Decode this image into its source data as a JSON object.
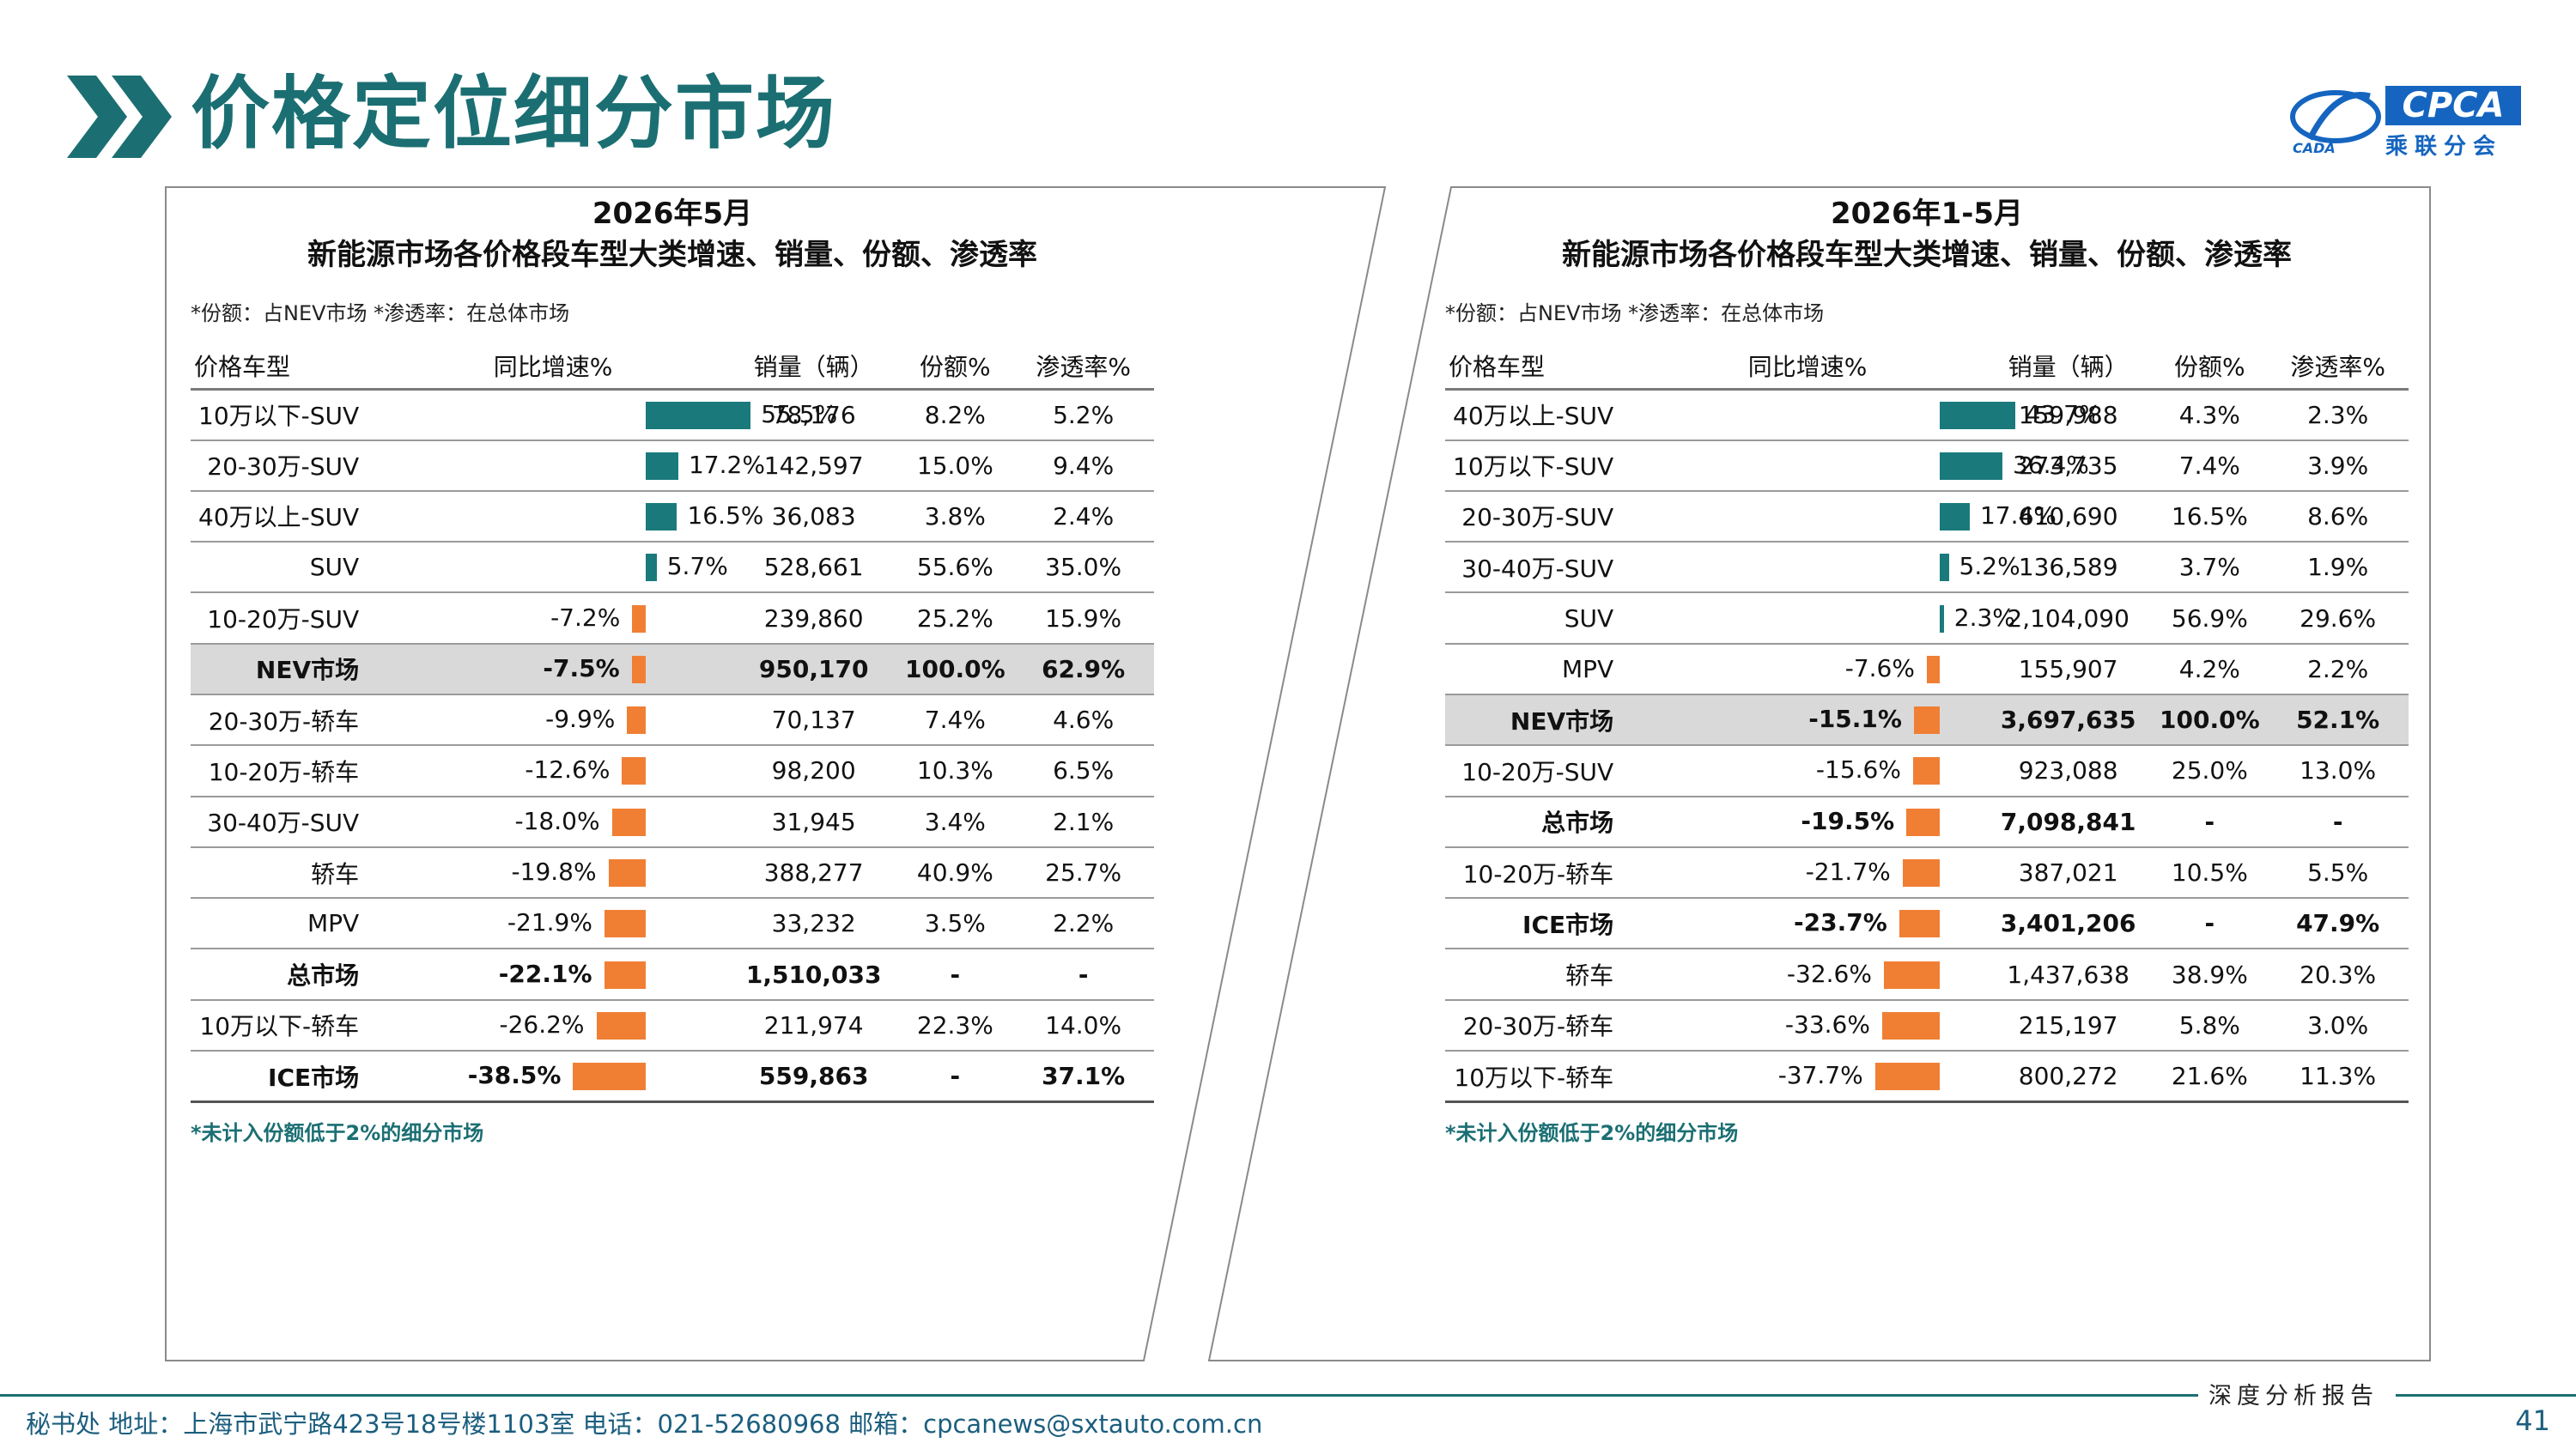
{
  "title": "价格定位细分市场",
  "logo": {
    "text": "CPCA",
    "sub": "乘联分会",
    "mark_text": "CADA"
  },
  "colors": {
    "accent": "#1b6f73",
    "positive_bar": "#1a7a7b",
    "negative_bar": "#f07f34",
    "highlight_row": "#d9d9d9"
  },
  "panels": [
    {
      "heading_line1": "2026年5月",
      "heading_line2": "新能源市场各价格段车型大类增速、销量、份额、渗透率",
      "note": "*份额：占NEV市场   *渗透率：在总体市场",
      "columns": [
        "价格车型",
        "同比增速%",
        "销量（辆）",
        "份额%",
        "渗透率%"
      ],
      "rows": [
        {
          "name": "10万以下-SUV",
          "growth": 55.5,
          "growth_label": "55.5%",
          "volume": "78,176",
          "share": "8.2%",
          "pen": "5.2%",
          "style": ""
        },
        {
          "name": "20-30万-SUV",
          "growth": 17.2,
          "growth_label": "17.2%",
          "volume": "142,597",
          "share": "15.0%",
          "pen": "9.4%",
          "style": ""
        },
        {
          "name": "40万以上-SUV",
          "growth": 16.5,
          "growth_label": "16.5%",
          "volume": "36,083",
          "share": "3.8%",
          "pen": "2.4%",
          "style": ""
        },
        {
          "name": "SUV",
          "growth": 5.7,
          "growth_label": "5.7%",
          "volume": "528,661",
          "share": "55.6%",
          "pen": "35.0%",
          "style": ""
        },
        {
          "name": "10-20万-SUV",
          "growth": -7.2,
          "growth_label": "-7.2%",
          "volume": "239,860",
          "share": "25.2%",
          "pen": "15.9%",
          "style": ""
        },
        {
          "name": "NEV市场",
          "growth": -7.5,
          "growth_label": "-7.5%",
          "volume": "950,170",
          "share": "100.0%",
          "pen": "62.9%",
          "style": "hl"
        },
        {
          "name": "20-30万-轿车",
          "growth": -9.9,
          "growth_label": "-9.9%",
          "volume": "70,137",
          "share": "7.4%",
          "pen": "4.6%",
          "style": ""
        },
        {
          "name": "10-20万-轿车",
          "growth": -12.6,
          "growth_label": "-12.6%",
          "volume": "98,200",
          "share": "10.3%",
          "pen": "6.5%",
          "style": ""
        },
        {
          "name": "30-40万-SUV",
          "growth": -18.0,
          "growth_label": "-18.0%",
          "volume": "31,945",
          "share": "3.4%",
          "pen": "2.1%",
          "style": ""
        },
        {
          "name": "轿车",
          "growth": -19.8,
          "growth_label": "-19.8%",
          "volume": "388,277",
          "share": "40.9%",
          "pen": "25.7%",
          "style": ""
        },
        {
          "name": "MPV",
          "growth": -21.9,
          "growth_label": "-21.9%",
          "volume": "33,232",
          "share": "3.5%",
          "pen": "2.2%",
          "style": ""
        },
        {
          "name": "总市场",
          "growth": -22.1,
          "growth_label": "-22.1%",
          "volume": "1,510,033",
          "share": "-",
          "pen": "-",
          "style": "bold"
        },
        {
          "name": "10万以下-轿车",
          "growth": -26.2,
          "growth_label": "-26.2%",
          "volume": "211,974",
          "share": "22.3%",
          "pen": "14.0%",
          "style": ""
        },
        {
          "name": "ICE市场",
          "growth": -38.5,
          "growth_label": "-38.5%",
          "volume": "559,863",
          "share": "-",
          "pen": "37.1%",
          "style": "bold"
        }
      ],
      "footnote": "*未计入份额低于2%的细分市场"
    },
    {
      "heading_line1": "2026年1-5月",
      "heading_line2": "新能源市场各价格段车型大类增速、销量、份额、渗透率",
      "note": "*份额：占NEV市场   *渗透率：在总体市场",
      "columns": [
        "价格车型",
        "同比增速%",
        "销量（辆）",
        "份额%",
        "渗透率%"
      ],
      "rows": [
        {
          "name": "40万以上-SUV",
          "growth": 43.7,
          "growth_label": "43.7%",
          "volume": "159,988",
          "share": "4.3%",
          "pen": "2.3%",
          "style": ""
        },
        {
          "name": "10万以下-SUV",
          "growth": 36.4,
          "growth_label": "36.4%",
          "volume": "273,735",
          "share": "7.4%",
          "pen": "3.9%",
          "style": ""
        },
        {
          "name": "20-30万-SUV",
          "growth": 17.4,
          "growth_label": "17.4%",
          "volume": "610,690",
          "share": "16.5%",
          "pen": "8.6%",
          "style": ""
        },
        {
          "name": "30-40万-SUV",
          "growth": 5.2,
          "growth_label": "5.2%",
          "volume": "136,589",
          "share": "3.7%",
          "pen": "1.9%",
          "style": ""
        },
        {
          "name": "SUV",
          "growth": 2.3,
          "growth_label": "2.3%",
          "volume": "2,104,090",
          "share": "56.9%",
          "pen": "29.6%",
          "style": ""
        },
        {
          "name": "MPV",
          "growth": -7.6,
          "growth_label": "-7.6%",
          "volume": "155,907",
          "share": "4.2%",
          "pen": "2.2%",
          "style": ""
        },
        {
          "name": "NEV市场",
          "growth": -15.1,
          "growth_label": "-15.1%",
          "volume": "3,697,635",
          "share": "100.0%",
          "pen": "52.1%",
          "style": "hl"
        },
        {
          "name": "10-20万-SUV",
          "growth": -15.6,
          "growth_label": "-15.6%",
          "volume": "923,088",
          "share": "25.0%",
          "pen": "13.0%",
          "style": ""
        },
        {
          "name": "总市场",
          "growth": -19.5,
          "growth_label": "-19.5%",
          "volume": "7,098,841",
          "share": "-",
          "pen": "-",
          "style": "bold"
        },
        {
          "name": "10-20万-轿车",
          "growth": -21.7,
          "growth_label": "-21.7%",
          "volume": "387,021",
          "share": "10.5%",
          "pen": "5.5%",
          "style": ""
        },
        {
          "name": "ICE市场",
          "growth": -23.7,
          "growth_label": "-23.7%",
          "volume": "3,401,206",
          "share": "-",
          "pen": "47.9%",
          "style": "bold"
        },
        {
          "name": "轿车",
          "growth": -32.6,
          "growth_label": "-32.6%",
          "volume": "1,437,638",
          "share": "38.9%",
          "pen": "20.3%",
          "style": ""
        },
        {
          "name": "20-30万-轿车",
          "growth": -33.6,
          "growth_label": "-33.6%",
          "volume": "215,197",
          "share": "5.8%",
          "pen": "3.0%",
          "style": ""
        },
        {
          "name": "10万以下-轿车",
          "growth": -37.7,
          "growth_label": "-37.7%",
          "volume": "800,272",
          "share": "21.6%",
          "pen": "11.3%",
          "style": ""
        }
      ],
      "footnote": "*未计入份额低于2%的细分市场"
    }
  ],
  "footer": {
    "info": "秘书处   地址：上海市武宁路423号18号楼1103室  电话：021-52680968   邮箱：cpcanews@sxtauto.com.cn",
    "tag": "深度分析报告",
    "page": "41"
  }
}
